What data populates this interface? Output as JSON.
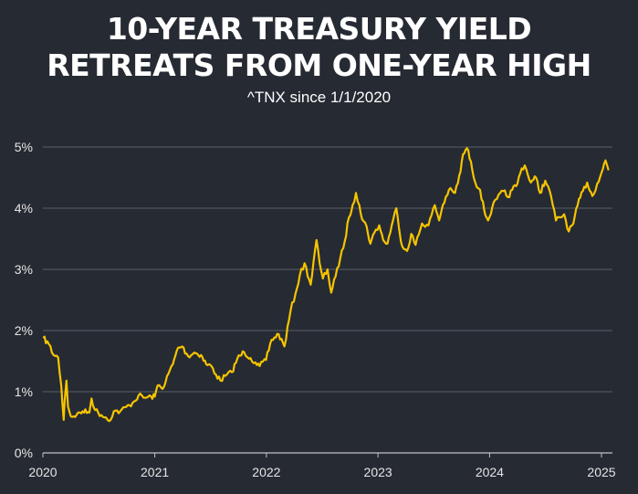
{
  "title_lines": [
    "10-YEAR TREASURY YIELD",
    "RETREATS FROM ONE-YEAR HIGH"
  ],
  "subtitle": "^TNX since 1/1/2020",
  "chart_data": {
    "type": "line",
    "title": "10-YEAR TREASURY YIELD RETREATS FROM ONE-YEAR HIGH",
    "subtitle": "^TNX since 1/1/2020",
    "xlabel": "",
    "ylabel": "",
    "xlim": [
      "2020-01-01",
      "2025-01-31"
    ],
    "ylim": [
      0,
      5
    ],
    "y_ticks": [
      0,
      1,
      2,
      3,
      4,
      5
    ],
    "y_tick_labels": [
      "0%",
      "1%",
      "2%",
      "3%",
      "4%",
      "5%"
    ],
    "x_ticks": [
      "2020-01-01",
      "2021-01-01",
      "2022-01-01",
      "2023-01-01",
      "2024-01-01",
      "2025-01-01"
    ],
    "x_tick_labels": [
      "2020",
      "2021",
      "2022",
      "2023",
      "2024",
      "2025"
    ],
    "grid": "horizontal",
    "line_color": "#f5c400",
    "series": [
      {
        "x": [
          "2020-01-02",
          "2020-01-20",
          "2020-02-05",
          "2020-02-20",
          "2020-03-01",
          "2020-03-09",
          "2020-03-12",
          "2020-03-18",
          "2020-03-23",
          "2020-04-01",
          "2020-04-20",
          "2020-05-10",
          "2020-06-01",
          "2020-06-08",
          "2020-06-20",
          "2020-07-10",
          "2020-07-25",
          "2020-08-04",
          "2020-08-20",
          "2020-09-10",
          "2020-10-10",
          "2020-10-25",
          "2020-11-09",
          "2020-11-30",
          "2020-12-20",
          "2021-01-01",
          "2021-01-10",
          "2021-01-31",
          "2021-02-15",
          "2021-03-01",
          "2021-03-18",
          "2021-03-31",
          "2021-04-20",
          "2021-05-10",
          "2021-06-01",
          "2021-06-18",
          "2021-07-05",
          "2021-07-20",
          "2021-08-04",
          "2021-08-20",
          "2021-09-10",
          "2021-09-28",
          "2021-10-20",
          "2021-11-10",
          "2021-11-26",
          "2021-12-10",
          "2021-12-31",
          "2022-01-18",
          "2022-02-10",
          "2022-03-01",
          "2022-03-21",
          "2022-04-06",
          "2022-04-20",
          "2022-05-06",
          "2022-05-26",
          "2022-06-14",
          "2022-06-24",
          "2022-07-05",
          "2022-07-20",
          "2022-08-01",
          "2022-08-15",
          "2022-08-31",
          "2022-09-14",
          "2022-09-28",
          "2022-10-10",
          "2022-10-21",
          "2022-11-01",
          "2022-11-10",
          "2022-11-25",
          "2022-12-07",
          "2022-12-20",
          "2023-01-05",
          "2023-01-18",
          "2023-02-01",
          "2023-02-15",
          "2023-03-02",
          "2023-03-10",
          "2023-03-17",
          "2023-04-06",
          "2023-04-20",
          "2023-05-04",
          "2023-05-25",
          "2023-06-15",
          "2023-07-06",
          "2023-07-20",
          "2023-08-01",
          "2023-08-21",
          "2023-09-10",
          "2023-09-28",
          "2023-10-06",
          "2023-10-19",
          "2023-11-01",
          "2023-11-15",
          "2023-12-01",
          "2023-12-15",
          "2023-12-27",
          "2024-01-10",
          "2024-01-25",
          "2024-02-15",
          "2024-03-01",
          "2024-03-15",
          "2024-04-01",
          "2024-04-15",
          "2024-04-25",
          "2024-05-15",
          "2024-06-01",
          "2024-06-14",
          "2024-07-01",
          "2024-07-20",
          "2024-08-05",
          "2024-08-20",
          "2024-09-01",
          "2024-09-16",
          "2024-10-01",
          "2024-10-15",
          "2024-11-01",
          "2024-11-15",
          "2024-12-02",
          "2024-12-18",
          "2025-01-01",
          "2025-01-14",
          "2025-01-24"
        ],
        "y": [
          1.88,
          1.78,
          1.6,
          1.56,
          1.1,
          0.54,
          0.85,
          1.18,
          0.76,
          0.6,
          0.62,
          0.68,
          0.66,
          0.89,
          0.7,
          0.62,
          0.58,
          0.52,
          0.68,
          0.68,
          0.78,
          0.84,
          0.94,
          0.9,
          0.92,
          0.92,
          1.1,
          1.08,
          1.3,
          1.45,
          1.72,
          1.74,
          1.58,
          1.64,
          1.6,
          1.45,
          1.42,
          1.28,
          1.18,
          1.26,
          1.32,
          1.54,
          1.65,
          1.55,
          1.48,
          1.42,
          1.52,
          1.85,
          1.94,
          1.74,
          2.32,
          2.6,
          2.9,
          3.1,
          2.75,
          3.48,
          3.1,
          2.85,
          3.0,
          2.62,
          2.88,
          3.19,
          3.45,
          3.85,
          4.05,
          4.25,
          4.05,
          3.82,
          3.7,
          3.42,
          3.6,
          3.72,
          3.48,
          3.42,
          3.72,
          4.0,
          3.7,
          3.45,
          3.3,
          3.58,
          3.4,
          3.75,
          3.72,
          4.05,
          3.8,
          4.05,
          4.3,
          4.25,
          4.6,
          4.88,
          4.98,
          4.76,
          4.42,
          4.3,
          3.95,
          3.8,
          4.02,
          4.15,
          4.28,
          4.18,
          4.3,
          4.4,
          4.65,
          4.7,
          4.42,
          4.5,
          4.25,
          4.45,
          4.2,
          3.8,
          3.85,
          3.9,
          3.62,
          3.75,
          4.05,
          4.28,
          4.42,
          4.2,
          4.4,
          4.58,
          4.78,
          4.62
        ]
      }
    ]
  }
}
